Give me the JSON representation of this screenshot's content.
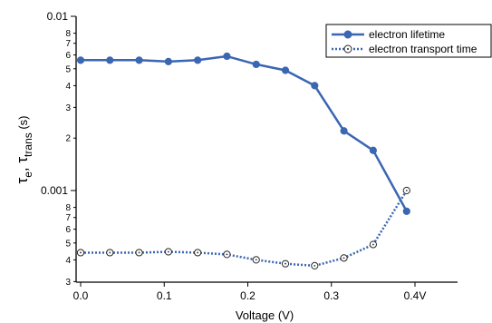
{
  "chart_data": {
    "type": "line",
    "title": "",
    "xlabel": "Voltage (V)",
    "ylabel": {
      "tau": "τ",
      "e_sub": "e",
      "sep": ", ",
      "trans_sub": "trans",
      "unit": " (s)"
    },
    "xlim": [
      0.0,
      0.42
    ],
    "ylim": [
      0.0003,
      0.01
    ],
    "yscale": "log",
    "grid": false,
    "legend_position": "top-right",
    "x_ticks": [
      {
        "value": 0.0,
        "label": "0.0"
      },
      {
        "value": 0.1,
        "label": "0.1"
      },
      {
        "value": 0.2,
        "label": "0.2"
      },
      {
        "value": 0.3,
        "label": "0.3"
      },
      {
        "value": 0.4,
        "label": "0.4V"
      }
    ],
    "y_major_ticks": [
      {
        "value": 0.001,
        "label": "0.001"
      },
      {
        "value": 0.01,
        "label": "0.01"
      }
    ],
    "y_minor_ticks": [
      {
        "value": 0.0003,
        "label": "3"
      },
      {
        "value": 0.0004,
        "label": "4"
      },
      {
        "value": 0.0005,
        "label": "5"
      },
      {
        "value": 0.0006,
        "label": "6"
      },
      {
        "value": 0.0007,
        "label": "7"
      },
      {
        "value": 0.0008,
        "label": "8"
      },
      {
        "value": 0.002,
        "label": "2"
      },
      {
        "value": 0.003,
        "label": "3"
      },
      {
        "value": 0.004,
        "label": "4"
      },
      {
        "value": 0.005,
        "label": "5"
      },
      {
        "value": 0.006,
        "label": "6"
      },
      {
        "value": 0.007,
        "label": "7"
      },
      {
        "value": 0.008,
        "label": "8"
      }
    ],
    "series": [
      {
        "name": "electron lifetime",
        "style": "solid",
        "marker": "filled-circle",
        "color": "#3a66b2",
        "x": [
          0.0,
          0.035,
          0.07,
          0.105,
          0.14,
          0.175,
          0.21,
          0.245,
          0.28,
          0.315,
          0.35,
          0.39
        ],
        "y": [
          0.0056,
          0.0056,
          0.0056,
          0.0055,
          0.0056,
          0.0059,
          0.0053,
          0.0049,
          0.004,
          0.0022,
          0.0017,
          0.00076
        ]
      },
      {
        "name": "electron transport time",
        "style": "dotted",
        "marker": "open-circle",
        "color": "#3a66b2",
        "x": [
          0.0,
          0.035,
          0.07,
          0.105,
          0.14,
          0.175,
          0.21,
          0.245,
          0.28,
          0.315,
          0.35,
          0.39
        ],
        "y": [
          0.00044,
          0.00044,
          0.00044,
          0.000445,
          0.00044,
          0.00043,
          0.0004,
          0.00038,
          0.00037,
          0.00041,
          0.00049,
          0.001
        ]
      }
    ]
  }
}
